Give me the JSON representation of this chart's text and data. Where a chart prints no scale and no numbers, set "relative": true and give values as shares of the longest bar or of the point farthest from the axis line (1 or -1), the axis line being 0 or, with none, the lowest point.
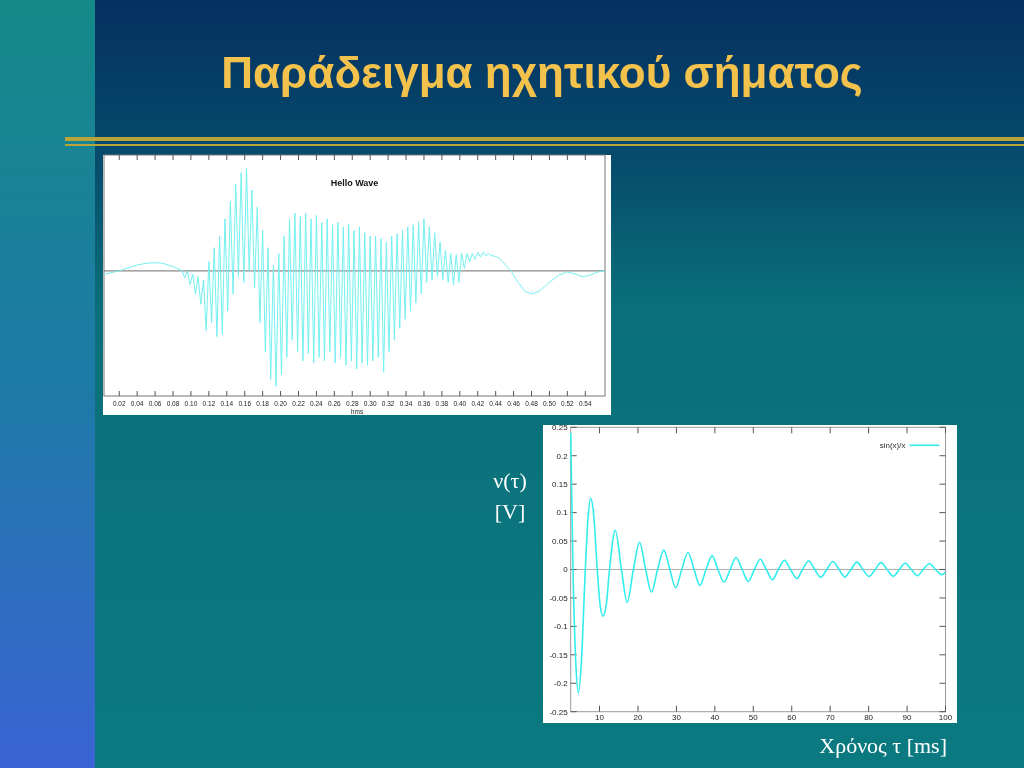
{
  "chart_data": [
    {
      "type": "other",
      "title": "Παράδειγμα ηχητικού σήματος"
    },
    {
      "type": "line",
      "title": "Hello Wave",
      "xlabel": "hms",
      "relative": true,
      "tick_labels": "x",
      "x": [
        0.003,
        0.012,
        0.02,
        0.03,
        0.04,
        0.05,
        0.06,
        0.068,
        0.075,
        0.082,
        0.09,
        0.093,
        0.096,
        0.099,
        0.102,
        0.105,
        0.108,
        0.111,
        0.114,
        0.117,
        0.12,
        0.123,
        0.126,
        0.129,
        0.132,
        0.135,
        0.138,
        0.141,
        0.144,
        0.147,
        0.15,
        0.153,
        0.156,
        0.159,
        0.162,
        0.165,
        0.168,
        0.171,
        0.174,
        0.177,
        0.18,
        0.183,
        0.186,
        0.189,
        0.192,
        0.195,
        0.198,
        0.201,
        0.204,
        0.207,
        0.21,
        0.213,
        0.216,
        0.219,
        0.222,
        0.225,
        0.228,
        0.231,
        0.234,
        0.237,
        0.24,
        0.243,
        0.246,
        0.249,
        0.252,
        0.255,
        0.258,
        0.261,
        0.264,
        0.267,
        0.27,
        0.273,
        0.276,
        0.279,
        0.282,
        0.285,
        0.288,
        0.291,
        0.294,
        0.297,
        0.3,
        0.303,
        0.306,
        0.309,
        0.312,
        0.315,
        0.318,
        0.321,
        0.324,
        0.327,
        0.33,
        0.333,
        0.336,
        0.339,
        0.342,
        0.345,
        0.348,
        0.351,
        0.354,
        0.357,
        0.36,
        0.363,
        0.366,
        0.369,
        0.372,
        0.375,
        0.378,
        0.381,
        0.384,
        0.387,
        0.39,
        0.393,
        0.396,
        0.399,
        0.402,
        0.405,
        0.408,
        0.411,
        0.414,
        0.417,
        0.42,
        0.423,
        0.426,
        0.429,
        0.432,
        0.435,
        0.438,
        0.444,
        0.45,
        0.457,
        0.465,
        0.473,
        0.481,
        0.49,
        0.5,
        0.51,
        0.52,
        0.53,
        0.536,
        0.545,
        0.554,
        0.562
      ],
      "series": [
        {
          "color": "#74f0f0",
          "values": [
            -0.03,
            -0.015,
            0,
            0.025,
            0.05,
            0.065,
            0.07,
            0.065,
            0.05,
            0.03,
            0,
            -0.06,
            0,
            -0.12,
            -0.03,
            -0.2,
            -0.05,
            -0.29,
            -0.08,
            -0.52,
            0.08,
            -0.45,
            0.2,
            -0.57,
            0.3,
            -0.55,
            0.45,
            -0.35,
            0.6,
            -0.2,
            0.75,
            -0.05,
            0.85,
            -0.1,
            0.89,
            0,
            0.7,
            -0.15,
            0.55,
            -0.45,
            0.35,
            -0.7,
            0.2,
            -0.94,
            0.05,
            -1,
            0.15,
            -0.9,
            0.3,
            -0.75,
            0.45,
            -0.6,
            0.5,
            -0.7,
            0.47,
            -0.78,
            0.5,
            -0.72,
            0.45,
            -0.8,
            0.48,
            -0.75,
            0.42,
            -0.78,
            0.45,
            -0.7,
            0.4,
            -0.8,
            0.42,
            -0.75,
            0.38,
            -0.82,
            0.4,
            -0.78,
            0.35,
            -0.85,
            0.38,
            -0.8,
            0.33,
            -0.82,
            0.3,
            -0.78,
            0.3,
            -0.75,
            0.28,
            -0.88,
            0.25,
            -0.7,
            0.3,
            -0.6,
            0.32,
            -0.5,
            0.35,
            -0.42,
            0.38,
            -0.35,
            0.4,
            -0.28,
            0.42,
            -0.2,
            0.45,
            -0.1,
            0.38,
            -0.08,
            0.33,
            -0.05,
            0.25,
            -0.08,
            0.18,
            -0.1,
            0.15,
            -0.12,
            0.14,
            -0.1,
            0.15,
            0.02,
            0.15,
            0.08,
            0.15,
            0.1,
            0.16,
            0.12,
            0.16,
            0.13,
            0.15,
            0.13,
            0.13,
            0.11,
            0.06,
            0,
            -0.1,
            -0.18,
            -0.2,
            -0.17,
            -0.1,
            -0.04,
            -0.01,
            -0.03,
            -0.05,
            -0.04,
            -0.01,
            0
          ]
        }
      ],
      "xlim": [
        0.003,
        0.562
      ],
      "xticks": [
        0.02,
        0.04,
        0.06,
        0.08,
        {
          "value": 0.1,
          "label": "0.10"
        },
        0.12,
        0.14,
        0.16,
        0.18,
        {
          "value": 0.2,
          "label": "0.20"
        },
        0.22,
        0.24,
        0.26,
        0.28,
        {
          "value": 0.3,
          "label": "0.30"
        },
        0.32,
        0.34,
        0.36,
        0.38,
        {
          "value": 0.4,
          "label": "0.40"
        },
        0.42,
        0.44,
        0.46,
        0.48,
        {
          "value": 0.5,
          "label": "0.50"
        },
        0.52,
        0.54
      ],
      "ref_lines": [
        {
          "axis": "y",
          "value": 0,
          "color": "#8a8a8a"
        }
      ]
    },
    {
      "type": "line",
      "xlabel": "Χρόνος τ [ms]",
      "ylabel": "ν(τ) [V]",
      "legend": "top right",
      "x": [
        2.5,
        3.1,
        3.8,
        4.5,
        5.3,
        6.3,
        7,
        7.7,
        8.5,
        9.4,
        10.2,
        10.9,
        11.7,
        12.6,
        14.1,
        15.7,
        17.2,
        18.8,
        20.4,
        22,
        23.5,
        25.1,
        26.7,
        28.3,
        29.8,
        31.4,
        33,
        34.6,
        36.1,
        37.7,
        39.3,
        40.8,
        42.4,
        44,
        45.5,
        47.1,
        48.7,
        50.3,
        51.8,
        53.4,
        55,
        56.5,
        58.1,
        59.7,
        61.3,
        62.8,
        64.4,
        66,
        67.5,
        69.1,
        70.7,
        72.3,
        73.8,
        75.4,
        77,
        78.5,
        80.1,
        81.7,
        83.2,
        84.8,
        86.4,
        88,
        89.5,
        91.1,
        92.7,
        94.2,
        95.8,
        97.4,
        99,
        100
      ],
      "series": [
        {
          "name": "sin(x)/x",
          "color": "#33eded",
          "values": [
            0.24,
            0,
            -0.16,
            -0.217,
            -0.16,
            0,
            0.09,
            0.125,
            0.095,
            0,
            -0.065,
            -0.082,
            -0.065,
            0,
            0.069,
            0,
            -0.058,
            0,
            0.048,
            0,
            -0.04,
            0,
            0.034,
            0,
            -0.032,
            0,
            0.03,
            0,
            -0.028,
            0,
            0.024,
            0,
            -0.022,
            0,
            0.021,
            0,
            -0.021,
            0,
            0.018,
            0,
            -0.018,
            0,
            0.016,
            0,
            -0.016,
            0,
            0.015,
            0,
            -0.014,
            0,
            0.014,
            0,
            -0.013,
            0,
            0.013,
            0,
            -0.012,
            0,
            0.012,
            0,
            -0.012,
            0,
            0.011,
            0,
            -0.011,
            0,
            0.01,
            0,
            -0.009,
            -0.005
          ]
        }
      ],
      "xlim": [
        2.5,
        100
      ],
      "xticks": [
        10,
        20,
        30,
        40,
        50,
        60,
        70,
        80,
        90,
        100
      ],
      "ylim": [
        -0.25,
        0.25
      ],
      "yticks": [
        -0.25,
        -0.2,
        -0.15,
        -0.1,
        -0.05,
        0,
        0.05,
        0.1,
        0.15,
        0.2,
        0.25
      ],
      "ref_lines": [
        {
          "axis": "y",
          "value": 0,
          "color": "#b0b0b0"
        }
      ]
    }
  ]
}
